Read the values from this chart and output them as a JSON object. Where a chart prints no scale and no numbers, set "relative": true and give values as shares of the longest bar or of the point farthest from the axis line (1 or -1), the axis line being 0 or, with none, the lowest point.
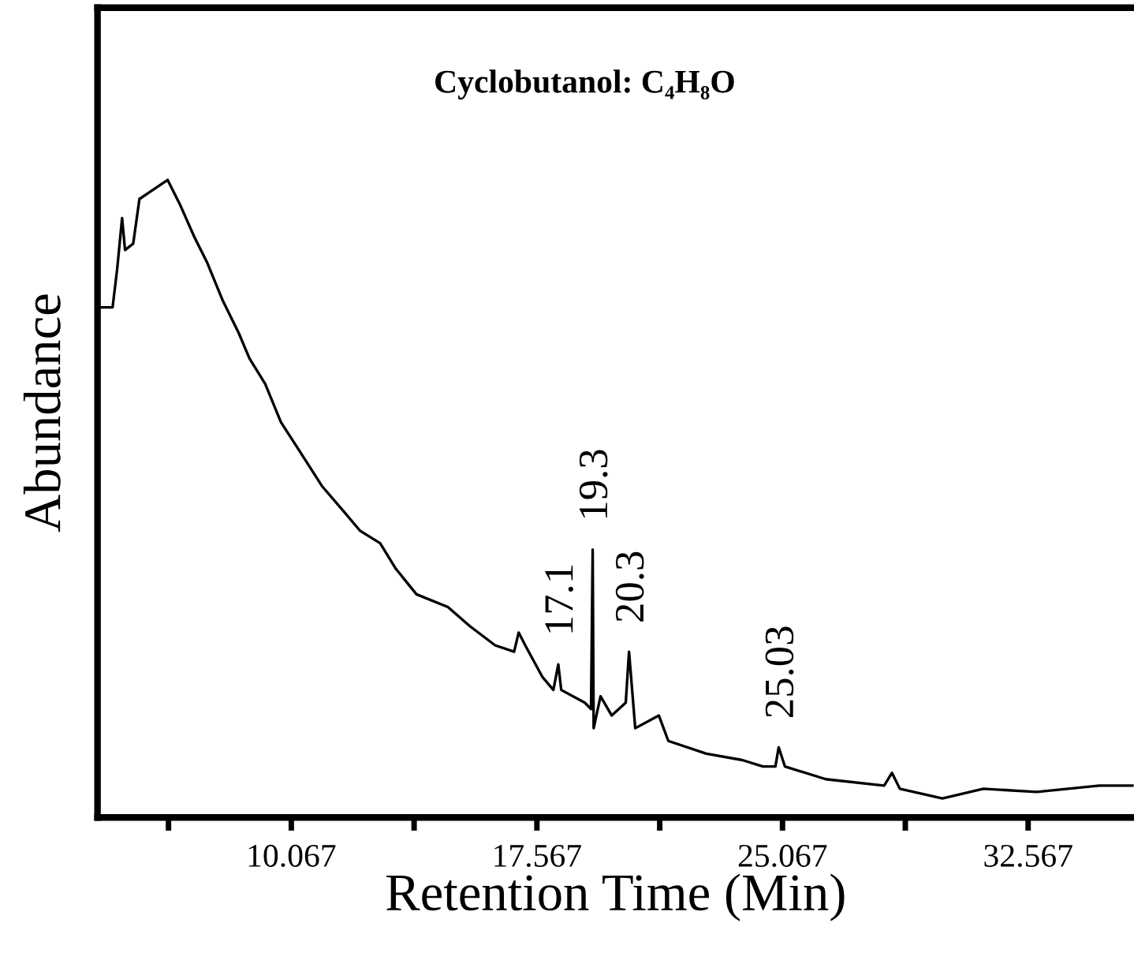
{
  "chart_data": {
    "type": "line",
    "relative": true,
    "title": "Cyclobutanol: C₄H₈O",
    "xlabel": "Retention Time (Min)",
    "ylabel": "Abundance",
    "xlim": [
      4.15,
      35.8
    ],
    "xticks": [
      {
        "value": 6.317,
        "label": null
      },
      10.067,
      {
        "value": 13.817,
        "label": null
      },
      17.567,
      {
        "value": 21.317,
        "label": null
      },
      25.067,
      {
        "value": 28.817,
        "label": null
      },
      32.567
    ],
    "grid": false,
    "legend": false,
    "marker": "none",
    "line_style": "solid",
    "series": [
      {
        "color": "#000000",
        "x": [
          4.27,
          4.61,
          4.75,
          4.9,
          4.99,
          5.24,
          5.43,
          5.72,
          6.29,
          6.68,
          7.11,
          7.5,
          7.98,
          8.46,
          8.79,
          9.27,
          9.75,
          10.38,
          11.0,
          11.67,
          12.16,
          12.78,
          13.26,
          13.89,
          14.85,
          15.52,
          16.29,
          16.87,
          17.01,
          17.21,
          17.74,
          18.07,
          18.22,
          18.31,
          19.03,
          19.22,
          19.27,
          19.3,
          19.51,
          19.85,
          20.28,
          20.38,
          20.57,
          21.29,
          21.58,
          22.74,
          23.84,
          24.47,
          24.85,
          24.95,
          25.14,
          26.39,
          28.17,
          28.41,
          28.65,
          29.95,
          31.2,
          32.83,
          34.74,
          35.75
        ],
        "values": [
          0.8,
          0.8,
          0.86,
          0.94,
          0.89,
          0.9,
          0.97,
          0.98,
          1.0,
          0.96,
          0.91,
          0.87,
          0.81,
          0.76,
          0.72,
          0.68,
          0.62,
          0.57,
          0.52,
          0.48,
          0.45,
          0.43,
          0.39,
          0.35,
          0.33,
          0.3,
          0.27,
          0.26,
          0.29,
          0.27,
          0.22,
          0.2,
          0.24,
          0.2,
          0.18,
          0.17,
          0.42,
          0.14,
          0.19,
          0.16,
          0.18,
          0.26,
          0.14,
          0.16,
          0.12,
          0.1,
          0.09,
          0.08,
          0.08,
          0.11,
          0.08,
          0.06,
          0.05,
          0.07,
          0.045,
          0.03,
          0.045,
          0.04,
          0.05,
          0.05
        ]
      }
    ],
    "annotations": [
      {
        "text": "17.1",
        "x": 18.22,
        "y": 0.24
      },
      {
        "text": "19.3",
        "x": 19.27,
        "y": 0.42
      },
      {
        "text": "20.3",
        "x": 20.38,
        "y": 0.26
      },
      {
        "text": "25.03",
        "x": 24.95,
        "y": 0.11
      }
    ]
  }
}
